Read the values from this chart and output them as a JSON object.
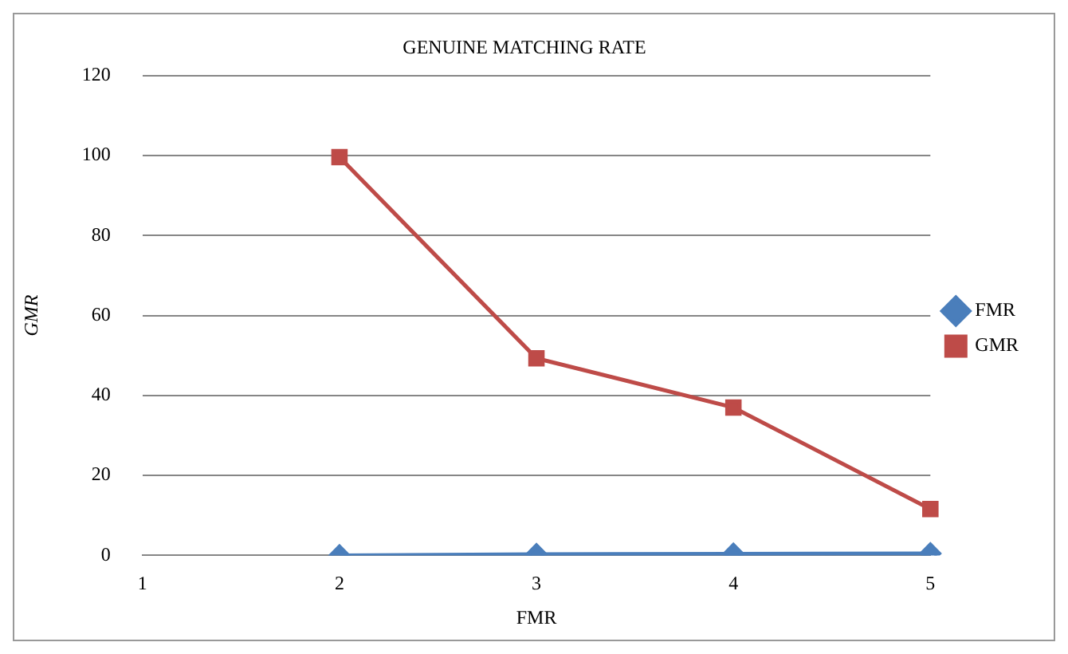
{
  "chart_data": {
    "type": "line",
    "title": "GENUINE MATCHING RATE",
    "xlabel": "FMR",
    "ylabel": "GMR",
    "categories": [
      "1",
      "2",
      "3",
      "4",
      "5"
    ],
    "series": [
      {
        "name": "FMR",
        "color": "#4a7ebb",
        "marker": "diamond",
        "values": [
          null,
          0,
          0.3,
          0.4,
          0.5
        ]
      },
      {
        "name": "GMR",
        "color": "#be4b48",
        "marker": "square",
        "values": [
          null,
          99.6,
          49.3,
          37,
          11.6
        ]
      }
    ],
    "ylim": [
      0,
      120
    ],
    "yticks": [
      0,
      20,
      40,
      60,
      80,
      100,
      120
    ],
    "grid": "y",
    "legend": "right"
  }
}
